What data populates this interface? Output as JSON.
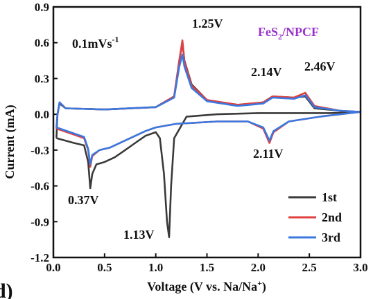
{
  "panel_label": "d)",
  "chart_data": {
    "type": "line",
    "xlabel_parts": [
      "Voltage (V vs. Na/Na",
      "+",
      ")"
    ],
    "ylabel": "Current (mA)",
    "xlim": [
      0.0,
      3.0
    ],
    "ylim": [
      -1.2,
      0.9
    ],
    "x_ticks": [
      "0.0",
      "0.5",
      "1.0",
      "1.5",
      "2.0",
      "2.5",
      "3.0"
    ],
    "y_ticks": [
      "0.9",
      "0.6",
      "0.3",
      "0.0",
      "-0.3",
      "-0.6",
      "-0.9",
      "-1.2"
    ],
    "title_parts": [
      "FeS",
      "2",
      "/NPCF"
    ],
    "title_color": "#9933cc",
    "rate_parts": [
      "0.1mVs",
      "-1"
    ],
    "legend_placement": "bottom-right",
    "annotations": [
      "1.25V",
      "2.14V",
      "2.46V",
      "2.11V",
      "0.37V",
      "1.13V"
    ],
    "series": [
      {
        "name": "1st",
        "color": "#3a3a3a",
        "points": [
          [
            0.03,
            -0.2
          ],
          [
            0.2,
            -0.24
          ],
          [
            0.3,
            -0.26
          ],
          [
            0.34,
            -0.4
          ],
          [
            0.36,
            -0.62
          ],
          [
            0.38,
            -0.5
          ],
          [
            0.42,
            -0.42
          ],
          [
            0.5,
            -0.4
          ],
          [
            0.6,
            -0.36
          ],
          [
            0.7,
            -0.3
          ],
          [
            0.8,
            -0.24
          ],
          [
            0.9,
            -0.18
          ],
          [
            1.0,
            -0.15
          ],
          [
            1.04,
            -0.2
          ],
          [
            1.08,
            -0.5
          ],
          [
            1.11,
            -0.9
          ],
          [
            1.13,
            -1.03
          ],
          [
            1.15,
            -0.6
          ],
          [
            1.18,
            -0.2
          ],
          [
            1.3,
            -0.02
          ],
          [
            1.6,
            0.0
          ],
          [
            2.0,
            0.01
          ],
          [
            2.4,
            0.01
          ],
          [
            2.7,
            0.01
          ],
          [
            3.0,
            0.02
          ],
          [
            2.8,
            0.03
          ],
          [
            2.55,
            0.05
          ],
          [
            2.46,
            0.15
          ],
          [
            2.35,
            0.14
          ],
          [
            2.14,
            0.15
          ],
          [
            2.05,
            0.1
          ],
          [
            1.8,
            0.08
          ],
          [
            1.5,
            0.12
          ],
          [
            1.35,
            0.25
          ],
          [
            1.28,
            0.45
          ],
          [
            1.26,
            0.6
          ],
          [
            1.23,
            0.45
          ],
          [
            1.18,
            0.15
          ],
          [
            1.0,
            0.06
          ],
          [
            0.5,
            0.04
          ],
          [
            0.12,
            0.05
          ],
          [
            0.06,
            0.09
          ],
          [
            0.04,
            0.0
          ],
          [
            0.03,
            -0.2
          ]
        ]
      },
      {
        "name": "2nd",
        "color": "#e04040",
        "points": [
          [
            0.03,
            -0.12
          ],
          [
            0.2,
            -0.17
          ],
          [
            0.3,
            -0.2
          ],
          [
            0.34,
            -0.3
          ],
          [
            0.36,
            -0.44
          ],
          [
            0.38,
            -0.35
          ],
          [
            0.45,
            -0.3
          ],
          [
            0.55,
            -0.28
          ],
          [
            0.7,
            -0.22
          ],
          [
            0.9,
            -0.14
          ],
          [
            1.0,
            -0.11
          ],
          [
            1.2,
            -0.08
          ],
          [
            1.6,
            -0.06
          ],
          [
            1.9,
            -0.06
          ],
          [
            2.05,
            -0.12
          ],
          [
            2.11,
            -0.24
          ],
          [
            2.15,
            -0.15
          ],
          [
            2.3,
            -0.06
          ],
          [
            2.6,
            -0.02
          ],
          [
            3.0,
            0.02
          ],
          [
            2.8,
            0.03
          ],
          [
            2.55,
            0.07
          ],
          [
            2.46,
            0.18
          ],
          [
            2.35,
            0.14
          ],
          [
            2.14,
            0.15
          ],
          [
            2.05,
            0.1
          ],
          [
            1.8,
            0.08
          ],
          [
            1.5,
            0.12
          ],
          [
            1.35,
            0.24
          ],
          [
            1.28,
            0.44
          ],
          [
            1.26,
            0.62
          ],
          [
            1.23,
            0.45
          ],
          [
            1.18,
            0.15
          ],
          [
            1.0,
            0.06
          ],
          [
            0.5,
            0.04
          ],
          [
            0.12,
            0.05
          ],
          [
            0.06,
            0.1
          ],
          [
            0.04,
            0.0
          ],
          [
            0.03,
            -0.12
          ]
        ]
      },
      {
        "name": "3rd",
        "color": "#3a78e0",
        "points": [
          [
            0.03,
            -0.11
          ],
          [
            0.2,
            -0.16
          ],
          [
            0.3,
            -0.19
          ],
          [
            0.34,
            -0.29
          ],
          [
            0.36,
            -0.42
          ],
          [
            0.38,
            -0.34
          ],
          [
            0.45,
            -0.3
          ],
          [
            0.55,
            -0.28
          ],
          [
            0.7,
            -0.22
          ],
          [
            0.9,
            -0.14
          ],
          [
            1.0,
            -0.11
          ],
          [
            1.2,
            -0.08
          ],
          [
            1.6,
            -0.06
          ],
          [
            1.9,
            -0.06
          ],
          [
            2.05,
            -0.11
          ],
          [
            2.11,
            -0.22
          ],
          [
            2.15,
            -0.14
          ],
          [
            2.3,
            -0.06
          ],
          [
            2.6,
            -0.02
          ],
          [
            3.0,
            0.02
          ],
          [
            2.8,
            0.03
          ],
          [
            2.55,
            0.06
          ],
          [
            2.46,
            0.16
          ],
          [
            2.35,
            0.13
          ],
          [
            2.14,
            0.14
          ],
          [
            2.05,
            0.09
          ],
          [
            1.8,
            0.07
          ],
          [
            1.5,
            0.11
          ],
          [
            1.35,
            0.22
          ],
          [
            1.28,
            0.4
          ],
          [
            1.26,
            0.5
          ],
          [
            1.23,
            0.4
          ],
          [
            1.18,
            0.14
          ],
          [
            1.0,
            0.06
          ],
          [
            0.5,
            0.04
          ],
          [
            0.12,
            0.05
          ],
          [
            0.06,
            0.1
          ],
          [
            0.04,
            0.0
          ],
          [
            0.03,
            -0.11
          ]
        ]
      }
    ]
  }
}
